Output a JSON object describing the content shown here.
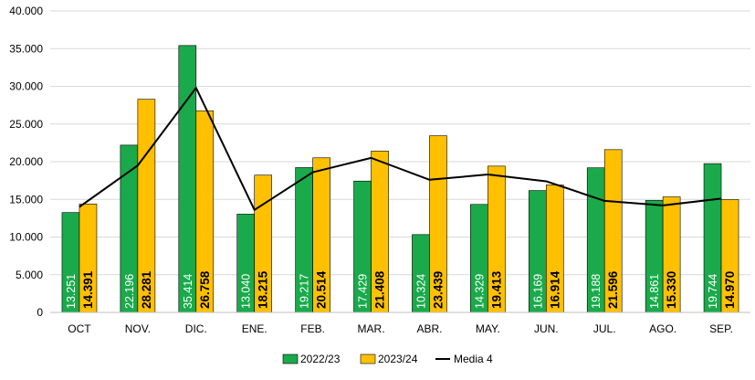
{
  "chart_data": {
    "type": "bar",
    "categories": [
      "OCT",
      "NOV.",
      "DIC.",
      "ENE.",
      "FEB.",
      "MAR.",
      "ABR.",
      "MAY.",
      "JUN.",
      "JUL.",
      "AGO.",
      "SEP."
    ],
    "series": [
      {
        "name": "2022/23",
        "color": "#1aaa4b",
        "values": [
          13251,
          22196,
          35414,
          13040,
          19217,
          17429,
          10324,
          14329,
          16169,
          19188,
          14861,
          19744
        ],
        "labels": [
          "13.251",
          "22.196",
          "35.414",
          "13.040",
          "19.217",
          "17.429",
          "10.324",
          "14.329",
          "16.169",
          "19.188",
          "14.861",
          "19.744"
        ]
      },
      {
        "name": "2023/24",
        "color": "#ffc000",
        "values": [
          14391,
          28281,
          26758,
          18215,
          20514,
          21408,
          23439,
          19413,
          16914,
          21596,
          15330,
          14970
        ],
        "labels": [
          "14.391",
          "28.281",
          "26.758",
          "18.215",
          "20.514",
          "21.408",
          "23.439",
          "19.413",
          "16.914",
          "21.596",
          "15.330",
          "14.970"
        ]
      },
      {
        "name": "Media 4",
        "type": "line",
        "color": "#000000",
        "values": [
          14000,
          19500,
          29800,
          13600,
          18600,
          20500,
          17600,
          18300,
          17400,
          14800,
          14200,
          15100
        ]
      }
    ],
    "yaxis": {
      "min": 0,
      "max": 40000,
      "ticks": [
        0,
        5000,
        10000,
        15000,
        20000,
        25000,
        30000,
        35000,
        40000
      ],
      "tick_labels": [
        "0",
        "5.000",
        "10.000",
        "15.000",
        "20.000",
        "25.000",
        "30.000",
        "35.000",
        "40.000"
      ]
    },
    "grid": true,
    "legend_position": "bottom",
    "title": ""
  }
}
